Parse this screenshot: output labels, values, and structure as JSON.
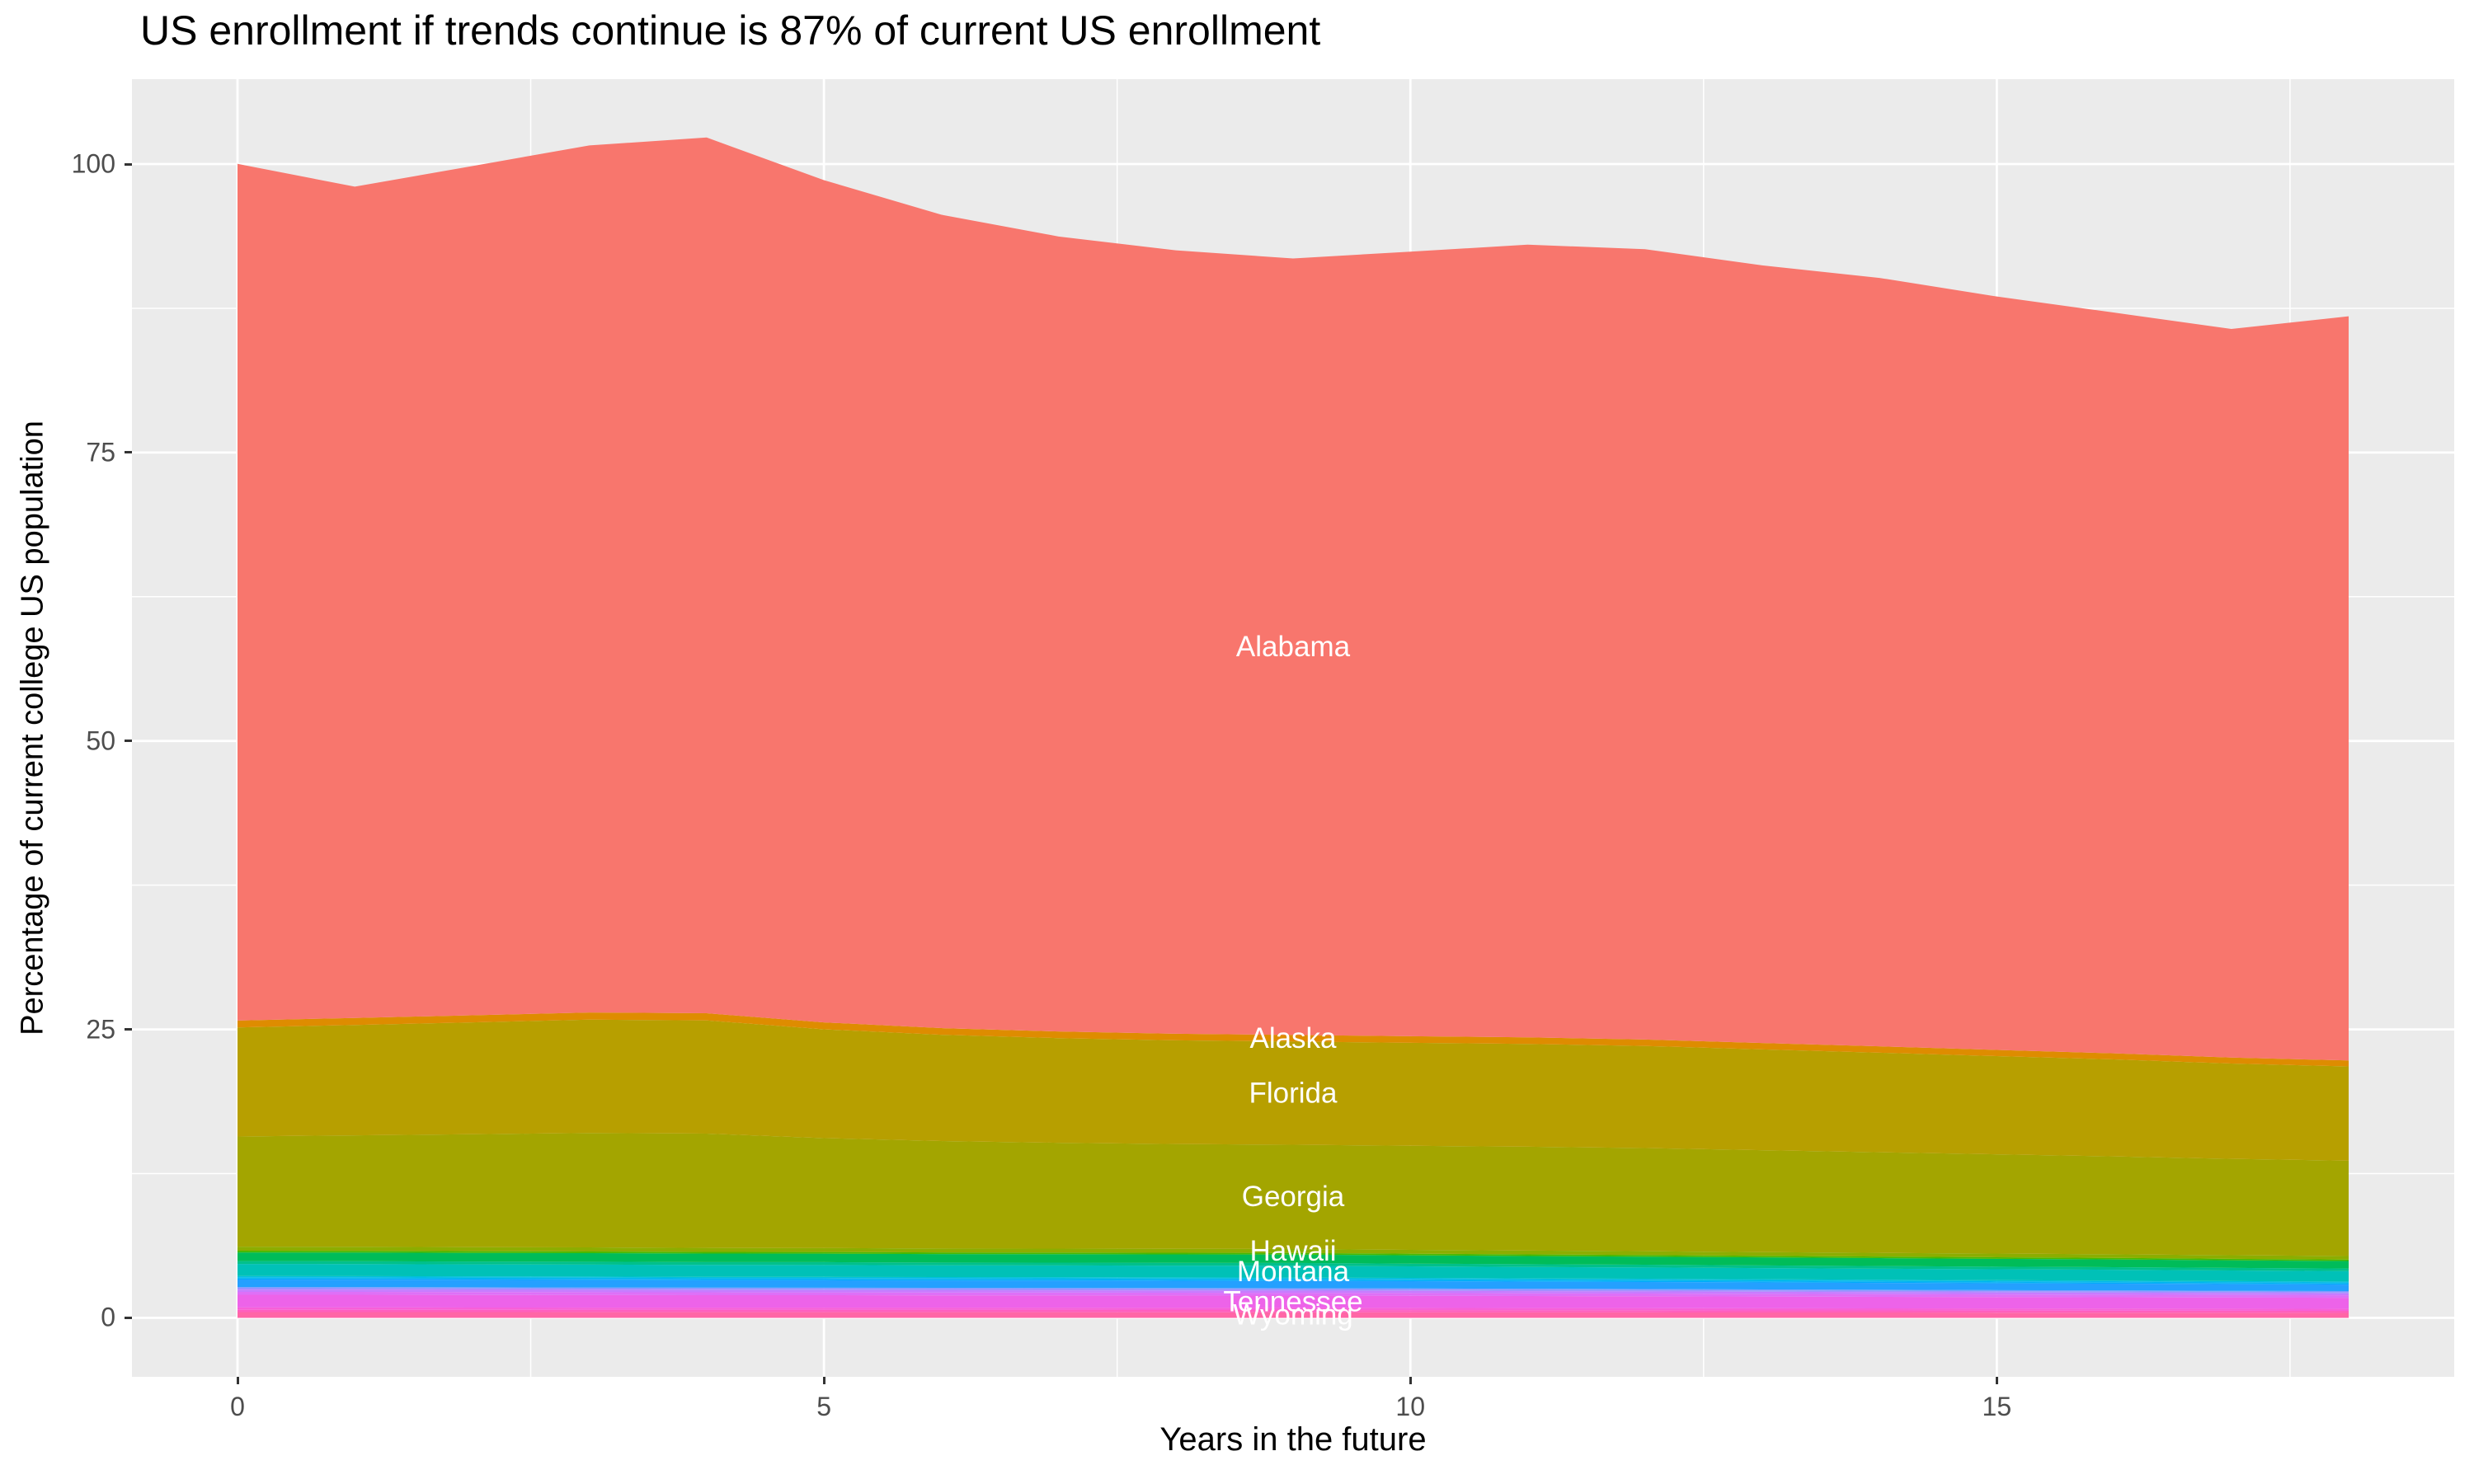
{
  "title": "US enrollment if trends continue is 87% of current US enrollment",
  "x_axis": {
    "label": "Years in the future",
    "tick_labels": [
      "0",
      "5",
      "10",
      "15"
    ],
    "tick_values": [
      0,
      5,
      10,
      15
    ],
    "minor_tick_values": [
      2.5,
      7.5,
      12.5,
      17.5
    ],
    "range": [
      -0.9,
      18.9
    ]
  },
  "y_axis": {
    "label": "Percentage of current college US population",
    "tick_labels": [
      "0",
      "25",
      "50",
      "75",
      "100"
    ],
    "tick_values": [
      0,
      25,
      50,
      75,
      100
    ],
    "minor_tick_values": [
      12.5,
      37.5,
      62.5,
      87.5
    ],
    "range": [
      -5.11,
      107.36
    ]
  },
  "style": {
    "panel_background": "#EBEBEB",
    "grid_color": "#FFFFFF",
    "tick_mark_color": "#333333",
    "tick_label_color": "#4D4D4D",
    "title_color": "#000000",
    "area_label_color": "#FFFFFF"
  },
  "chart_data": {
    "type": "area",
    "stacked": true,
    "legend": "none",
    "grid": "on",
    "label_x": 9,
    "x": [
      0,
      1,
      2,
      3,
      4,
      5,
      6,
      7,
      8,
      9,
      10,
      11,
      12,
      13,
      14,
      15,
      16,
      17,
      18
    ],
    "total_top_boundary": [
      100.0,
      98.0,
      99.8,
      101.6,
      102.3,
      98.6,
      95.6,
      93.7,
      92.5,
      91.8,
      92.4,
      93.0,
      92.6,
      91.2,
      90.1,
      88.5,
      87.1,
      85.7,
      86.8
    ],
    "bottom_group_total": [
      6.15,
      6.13,
      6.1,
      6.08,
      6.05,
      6.03,
      6.0,
      5.98,
      5.96,
      5.95,
      5.88,
      5.82,
      5.75,
      5.68,
      5.61,
      5.55,
      5.48,
      5.41,
      5.35
    ],
    "series": [
      {
        "name": "Wyoming",
        "label_text": "Wyoming",
        "color": "#FF66A6",
        "values": [
          0.5,
          0.5,
          0.5,
          0.49,
          0.49,
          0.49,
          0.49,
          0.49,
          0.48,
          0.48,
          0.48,
          0.47,
          0.47,
          0.46,
          0.46,
          0.45,
          0.45,
          0.44,
          0.43
        ]
      },
      {
        "name": "unlabeled-state-band-1",
        "label_text": null,
        "color": "#FF5FBD",
        "fraction_of_bottom_total": 0.0325
      },
      {
        "name": "unlabeled-state-band-2",
        "label_text": null,
        "color": "#F760D8",
        "fraction_of_bottom_total": 0.0325
      },
      {
        "name": "Tennessee",
        "label_text": "Tennessee",
        "color": "#ED63E9",
        "values": [
          1.1,
          1.1,
          1.09,
          1.09,
          1.08,
          1.08,
          1.07,
          1.07,
          1.07,
          1.06,
          1.05,
          1.04,
          1.03,
          1.02,
          1.0,
          0.99,
          0.98,
          0.97,
          0.96
        ]
      },
      {
        "name": "unlabeled-state-band-3",
        "label_text": null,
        "color": "#DE70F7",
        "fraction_of_bottom_total": 0.0407
      },
      {
        "name": "unlabeled-state-band-4",
        "label_text": null,
        "color": "#C77CFF",
        "fraction_of_bottom_total": 0.0325
      },
      {
        "name": "unlabeled-state-band-5",
        "label_text": null,
        "color": "#A58EFF",
        "fraction_of_bottom_total": 0.0195
      },
      {
        "name": "unlabeled-state-band-6",
        "label_text": null,
        "color": "#7E9BFF",
        "fraction_of_bottom_total": 0.0163
      },
      {
        "name": "unlabeled-state-band-7",
        "label_text": null,
        "color": "#24A0FF",
        "fraction_of_bottom_total": 0.1057
      },
      {
        "name": "unlabeled-state-band-8",
        "label_text": null,
        "color": "#00ABFB",
        "fraction_of_bottom_total": 0.0163
      },
      {
        "name": "unlabeled-state-band-9",
        "label_text": null,
        "color": "#00B6EE",
        "fraction_of_bottom_total": 0.0163
      },
      {
        "name": "unlabeled-state-band-10",
        "label_text": null,
        "color": "#00BFDD",
        "fraction_of_bottom_total": 0.0163
      },
      {
        "name": "Montana",
        "label_text": "Montana",
        "color": "#00C1B7",
        "values": [
          1.05,
          1.05,
          1.04,
          1.04,
          1.03,
          1.03,
          1.02,
          1.02,
          1.02,
          1.02,
          1.0,
          0.99,
          0.98,
          0.97,
          0.96,
          0.95,
          0.94,
          0.92,
          0.91
        ]
      },
      {
        "name": "unlabeled-state-band-11",
        "label_text": null,
        "color": "#00C08B",
        "fraction_of_bottom_total": 0.0407
      },
      {
        "name": "unlabeled-state-band-12",
        "label_text": null,
        "color": "#00BC59",
        "fraction_of_bottom_total": 0.122
      },
      {
        "name": "unlabeled-state-band-13",
        "label_text": null,
        "color": "#47B900",
        "fraction_of_bottom_total": 0.0244
      },
      {
        "name": "Hawaii",
        "label_text": "Hawaii",
        "color": "#8CAD00",
        "values": [
          0.35,
          0.35,
          0.35,
          0.35,
          0.34,
          0.34,
          0.34,
          0.34,
          0.34,
          0.34,
          0.33,
          0.33,
          0.33,
          0.32,
          0.32,
          0.32,
          0.31,
          0.31,
          0.3
        ]
      },
      {
        "name": "Georgia",
        "label_text": "Georgia",
        "color": "#A3A500",
        "values": [
          9.55,
          9.66,
          9.79,
          9.92,
          9.91,
          9.53,
          9.31,
          9.17,
          9.08,
          9.04,
          9.02,
          9.0,
          8.94,
          8.83,
          8.72,
          8.6,
          8.49,
          8.35,
          8.26
        ]
      },
      {
        "name": "Florida",
        "label_text": "Florida",
        "color": "#B79F00",
        "values": [
          9.45,
          9.56,
          9.69,
          9.82,
          9.81,
          9.43,
          9.21,
          9.07,
          8.99,
          8.94,
          8.93,
          8.91,
          8.85,
          8.74,
          8.63,
          8.51,
          8.4,
          8.26,
          8.17
        ]
      },
      {
        "name": "Alaska",
        "label_text": "Alaska",
        "color": "#DE8C00",
        "values": [
          0.6,
          0.61,
          0.62,
          0.62,
          0.62,
          0.6,
          0.58,
          0.58,
          0.57,
          0.57,
          0.57,
          0.57,
          0.56,
          0.55,
          0.55,
          0.54,
          0.53,
          0.52,
          0.52
        ]
      },
      {
        "name": "Alabama",
        "label_text": "Alabama",
        "color": "#F8766D",
        "values": [
          74.25,
          72.05,
          73.6,
          75.15,
          75.9,
          73.0,
          70.5,
          68.9,
          67.9,
          67.3,
          68.0,
          68.7,
          68.5,
          67.4,
          66.6,
          65.3,
          64.2,
          63.15,
          64.5
        ]
      }
    ]
  }
}
